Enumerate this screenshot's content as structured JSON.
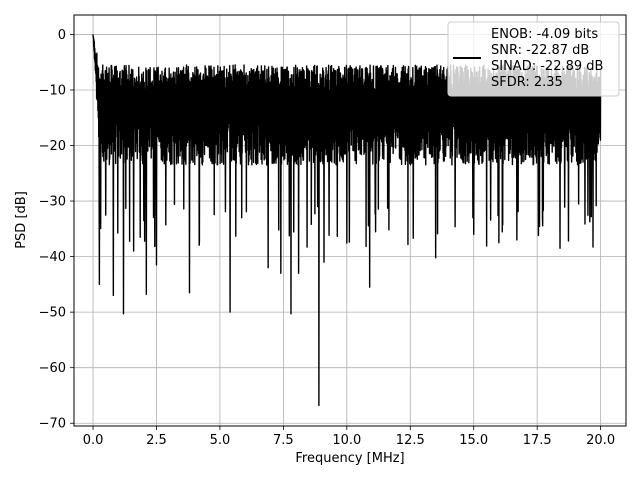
{
  "chart_data": {
    "type": "line",
    "title": "",
    "xlabel": "Frequency [MHz]",
    "ylabel": "PSD [dB]",
    "xlim": [
      -0.75,
      21.0
    ],
    "ylim": [
      -70.5,
      3.5
    ],
    "x_ticks": [
      0.0,
      2.5,
      5.0,
      7.5,
      10.0,
      12.5,
      15.0,
      17.5,
      20.0
    ],
    "x_tick_labels": [
      "0.0",
      "2.5",
      "5.0",
      "7.5",
      "10.0",
      "12.5",
      "15.0",
      "17.5",
      "20.0"
    ],
    "y_ticks": [
      0,
      -10,
      -20,
      -30,
      -40,
      -50,
      -60,
      -70
    ],
    "y_tick_labels": [
      "0",
      "−10",
      "−20",
      "−30",
      "−40",
      "−50",
      "−60",
      "−70"
    ],
    "grid": true,
    "legend_position": "top-right",
    "line_color": "#000000",
    "series": [
      {
        "legend_lines": [
          "ENOB: -4.09 bits",
          "SNR: -22.87 dB",
          "SINAD: -22.89 dB",
          "SFDR: 2.35"
        ],
        "x_range": [
          0.0,
          20.0
        ],
        "peak": {
          "x": 0.0,
          "y": 0.0
        },
        "noise_band": {
          "upper_db": -9.5,
          "lower_db": -27.5
        },
        "dips": [
          {
            "x": 0.25,
            "y": -45.0
          },
          {
            "x": 0.8,
            "y": -47.0
          },
          {
            "x": 1.2,
            "y": -50.3
          },
          {
            "x": 1.6,
            "y": -39.0
          },
          {
            "x": 2.1,
            "y": -46.8
          },
          {
            "x": 2.5,
            "y": -41.5
          },
          {
            "x": 3.8,
            "y": -46.5
          },
          {
            "x": 5.4,
            "y": -50.0
          },
          {
            "x": 6.9,
            "y": -42.0
          },
          {
            "x": 7.4,
            "y": -43.0
          },
          {
            "x": 7.8,
            "y": -50.3
          },
          {
            "x": 8.1,
            "y": -43.0
          },
          {
            "x": 8.9,
            "y": -66.8
          },
          {
            "x": 9.1,
            "y": -41.0
          },
          {
            "x": 10.9,
            "y": -45.5
          },
          {
            "x": 13.5,
            "y": -40.2
          },
          {
            "x": 15.0,
            "y": -36.0
          },
          {
            "x": 16.7,
            "y": -37.0
          },
          {
            "x": 18.4,
            "y": -38.5
          }
        ]
      }
    ]
  }
}
